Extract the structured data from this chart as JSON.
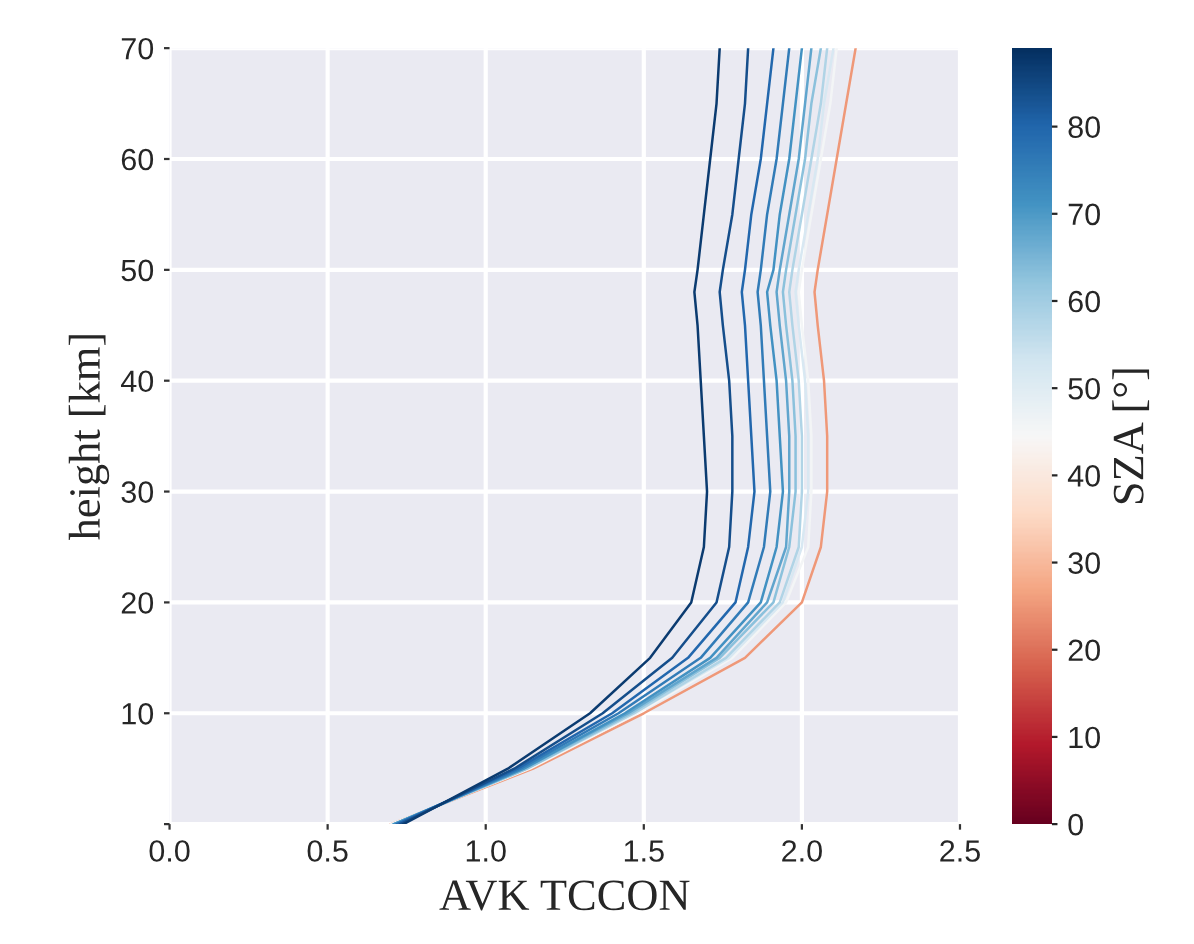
{
  "chart_data": {
    "type": "line",
    "xlabel": "AVK TCCON",
    "ylabel": "height [km]",
    "clabel": "SZA [°]",
    "xlim": [
      0,
      2.5
    ],
    "xticks": [
      {
        "value": 0,
        "label": "0.0"
      },
      0.5,
      {
        "value": 1,
        "label": "1.0"
      },
      1.5,
      {
        "value": 2,
        "label": "2.0"
      },
      2.5
    ],
    "ylim": [
      0,
      70
    ],
    "yticks": [
      {
        "value": 0,
        "label": null
      },
      10,
      20,
      30,
      40,
      50,
      60,
      70
    ],
    "clim": [
      0,
      89
    ],
    "cticks": [
      0,
      10,
      20,
      30,
      40,
      50,
      60,
      70,
      80
    ],
    "grid": true,
    "legend": false,
    "marker": "none",
    "line_style": "solid",
    "series": [
      {
        "color": "#ef9878",
        "x": [
          0.7,
          1.15,
          1.5,
          1.82,
          2.0,
          2.06,
          2.08,
          2.08,
          2.07,
          2.05,
          2.04,
          2.05,
          2.08,
          2.11,
          2.14,
          2.17
        ],
        "values": [
          0,
          5,
          10,
          15,
          20,
          25,
          30,
          35,
          40,
          45,
          48,
          50,
          55,
          60,
          65,
          70
        ]
      },
      {
        "color": "#f3f5f6",
        "x": [
          0.7,
          1.14,
          1.48,
          1.78,
          1.95,
          2.02,
          2.03,
          2.03,
          2.02,
          2.0,
          1.99,
          2.0,
          2.03,
          2.06,
          2.09,
          2.11
        ],
        "values": [
          0,
          5,
          10,
          15,
          20,
          25,
          30,
          35,
          40,
          45,
          48,
          50,
          55,
          60,
          65,
          70
        ]
      },
      {
        "color": "#d8e8f2",
        "x": [
          0.71,
          1.13,
          1.47,
          1.77,
          1.94,
          2.0,
          2.02,
          2.02,
          2.01,
          1.99,
          1.98,
          1.99,
          2.02,
          2.05,
          2.07,
          2.1
        ],
        "values": [
          0,
          5,
          10,
          15,
          20,
          25,
          30,
          35,
          40,
          45,
          48,
          50,
          55,
          60,
          65,
          70
        ]
      },
      {
        "color": "#b0d4e6",
        "x": [
          0.71,
          1.13,
          1.47,
          1.76,
          1.93,
          1.99,
          2.0,
          2.0,
          1.99,
          1.97,
          1.96,
          1.97,
          2.0,
          2.03,
          2.06,
          2.08
        ],
        "values": [
          0,
          5,
          10,
          15,
          20,
          25,
          30,
          35,
          40,
          45,
          48,
          50,
          55,
          60,
          65,
          70
        ]
      },
      {
        "color": "#8bc1dc",
        "x": [
          0.71,
          1.13,
          1.46,
          1.74,
          1.91,
          1.96,
          1.98,
          1.98,
          1.97,
          1.95,
          1.94,
          1.95,
          1.98,
          2.01,
          2.03,
          2.06
        ],
        "values": [
          0,
          5,
          10,
          15,
          20,
          25,
          30,
          35,
          40,
          45,
          48,
          50,
          55,
          60,
          65,
          70
        ]
      },
      {
        "color": "#60a5cd",
        "x": [
          0.71,
          1.12,
          1.45,
          1.73,
          1.89,
          1.95,
          1.96,
          1.96,
          1.95,
          1.93,
          1.92,
          1.93,
          1.96,
          1.99,
          2.01,
          2.03
        ],
        "values": [
          0,
          5,
          10,
          15,
          20,
          25,
          30,
          35,
          40,
          45,
          48,
          50,
          55,
          60,
          65,
          70
        ]
      },
      {
        "color": "#4291c2",
        "x": [
          0.71,
          1.12,
          1.44,
          1.71,
          1.87,
          1.92,
          1.94,
          1.93,
          1.92,
          1.9,
          1.89,
          1.91,
          1.93,
          1.96,
          1.98,
          2.0
        ],
        "values": [
          0,
          5,
          10,
          15,
          20,
          25,
          30,
          35,
          40,
          45,
          48,
          50,
          55,
          60,
          65,
          70
        ]
      },
      {
        "color": "#317bb7",
        "x": [
          0.72,
          1.11,
          1.42,
          1.68,
          1.83,
          1.88,
          1.9,
          1.89,
          1.88,
          1.87,
          1.86,
          1.87,
          1.89,
          1.92,
          1.94,
          1.96
        ],
        "values": [
          0,
          5,
          10,
          15,
          20,
          25,
          30,
          35,
          40,
          45,
          48,
          50,
          55,
          60,
          65,
          70
        ]
      },
      {
        "color": "#2267ad",
        "x": [
          0.72,
          1.1,
          1.4,
          1.64,
          1.79,
          1.83,
          1.85,
          1.84,
          1.83,
          1.82,
          1.81,
          1.82,
          1.84,
          1.87,
          1.89,
          1.91
        ],
        "values": [
          0,
          5,
          10,
          15,
          20,
          25,
          30,
          35,
          40,
          45,
          48,
          50,
          55,
          60,
          65,
          70
        ]
      },
      {
        "color": "#154e8b",
        "x": [
          0.73,
          1.09,
          1.37,
          1.59,
          1.73,
          1.77,
          1.78,
          1.78,
          1.77,
          1.75,
          1.74,
          1.75,
          1.78,
          1.8,
          1.82,
          1.83
        ],
        "values": [
          0,
          5,
          10,
          15,
          20,
          25,
          30,
          35,
          40,
          45,
          48,
          50,
          55,
          60,
          65,
          70
        ]
      },
      {
        "color": "#0b3b70",
        "x": [
          0.74,
          1.07,
          1.33,
          1.52,
          1.65,
          1.69,
          1.7,
          1.69,
          1.68,
          1.67,
          1.66,
          1.67,
          1.69,
          1.71,
          1.73,
          1.74
        ],
        "values": [
          0,
          5,
          10,
          15,
          20,
          25,
          30,
          35,
          40,
          45,
          48,
          50,
          55,
          60,
          65,
          70
        ]
      }
    ]
  }
}
